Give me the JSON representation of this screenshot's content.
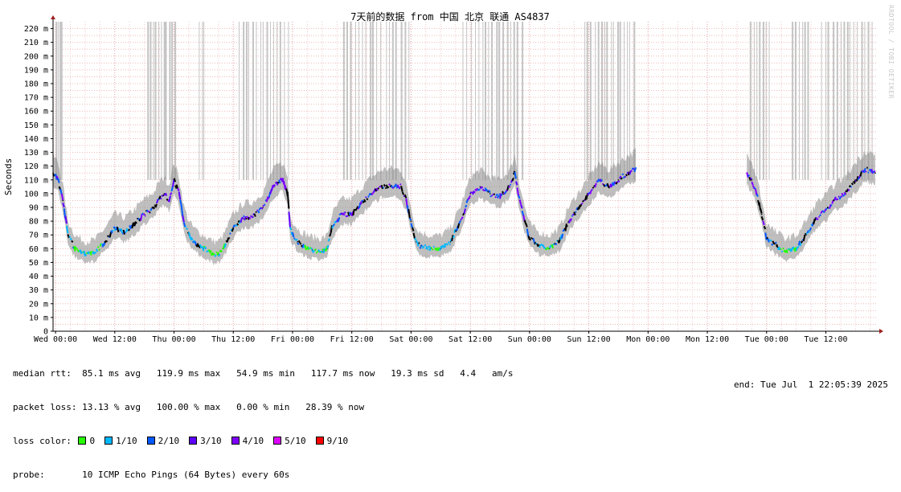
{
  "chart_data": {
    "type": "line",
    "title": "7天前的数据 from 中国 北京 联通 AS4837",
    "ylabel": "Seconds",
    "ylim": [
      0,
      225
    ],
    "yticks": [
      0,
      10,
      20,
      30,
      40,
      50,
      60,
      70,
      80,
      90,
      100,
      110,
      120,
      130,
      140,
      150,
      160,
      170,
      180,
      190,
      200,
      210,
      220
    ],
    "ytick_labels": [
      "0",
      "10 m",
      "20 m",
      "30 m",
      "40 m",
      "50 m",
      "60 m",
      "70 m",
      "80 m",
      "90 m",
      "100 m",
      "110 m",
      "120 m",
      "130 m",
      "140 m",
      "150 m",
      "160 m",
      "170 m",
      "180 m",
      "190 m",
      "200 m",
      "210 m",
      "220 m"
    ],
    "x_unit": "hours since Wed 00:00",
    "xlim": [
      -0.5,
      166.5
    ],
    "xticks": [
      0,
      12,
      24,
      36,
      48,
      60,
      72,
      84,
      96,
      108,
      120,
      132,
      144,
      156
    ],
    "xtick_labels": [
      "Wed 00:00",
      "Wed 12:00",
      "Thu 00:00",
      "Thu 12:00",
      "Fri 00:00",
      "Fri 12:00",
      "Sat 00:00",
      "Sat 12:00",
      "Sun 00:00",
      "Sun 12:00",
      "Mon 00:00",
      "Mon 12:00",
      "Tue 00:00",
      "Tue 12:00"
    ],
    "grid": true,
    "series": [
      {
        "name": "median rtt",
        "x": [
          -0.5,
          0.5,
          1.5,
          2.5,
          4,
          6,
          8,
          10,
          11,
          12,
          14,
          16,
          18,
          20,
          21,
          22,
          23,
          24,
          25,
          26,
          27,
          28,
          30,
          32,
          33,
          34,
          36,
          38,
          40,
          42,
          44,
          45,
          46,
          47,
          47.5,
          48,
          49,
          50,
          52,
          54,
          55,
          56,
          58,
          60,
          62,
          64,
          66,
          68,
          70,
          71,
          72,
          73,
          74,
          76,
          78,
          80,
          82,
          84,
          86,
          88,
          90,
          92,
          93,
          94,
          95,
          96,
          98,
          100,
          102,
          104,
          106,
          108,
          110,
          112,
          114,
          116,
          117.5,
          140,
          141,
          142,
          143,
          144,
          146,
          148,
          150,
          152,
          154,
          156,
          158,
          160,
          162,
          164,
          166
        ],
        "values": [
          115,
          110,
          95,
          70,
          60,
          56,
          57,
          65,
          70,
          75,
          72,
          78,
          85,
          90,
          97,
          100,
          95,
          110,
          100,
          80,
          70,
          65,
          60,
          56,
          56,
          60,
          75,
          82,
          83,
          90,
          105,
          108,
          110,
          100,
          75,
          70,
          65,
          62,
          59,
          58,
          60,
          75,
          85,
          85,
          93,
          100,
          105,
          106,
          105,
          95,
          80,
          65,
          62,
          60,
          60,
          65,
          80,
          100,
          105,
          100,
          98,
          105,
          115,
          95,
          80,
          68,
          62,
          60,
          65,
          80,
          90,
          100,
          110,
          105,
          110,
          115,
          118,
          115,
          110,
          100,
          85,
          68,
          62,
          58,
          60,
          70,
          82,
          88,
          96,
          100,
          110,
          118,
          115
        ]
      }
    ],
    "loss_spikes": [
      {
        "from": 0.2,
        "to": 1.5,
        "count": 4
      },
      {
        "from": 18.5,
        "to": 24.5,
        "count": 11
      },
      {
        "from": 29,
        "to": 30.5,
        "count": 3
      },
      {
        "from": 37,
        "to": 47.5,
        "count": 15
      },
      {
        "from": 58,
        "to": 72,
        "count": 18
      },
      {
        "from": 82.5,
        "to": 95,
        "count": 17
      },
      {
        "from": 107,
        "to": 117.5,
        "count": 16
      },
      {
        "from": 140.5,
        "to": 145,
        "count": 7
      },
      {
        "from": 149,
        "to": 153,
        "count": 6
      },
      {
        "from": 155,
        "to": 166,
        "count": 15
      }
    ]
  },
  "legend": {
    "median_rtt_label": "median rtt:",
    "median_rtt_values": "85.1 ms avg   119.9 ms max   54.9 ms min   117.7 ms now   19.3 ms sd   4.4   am/s",
    "packet_loss_label": "packet loss:",
    "packet_loss_values": "13.13 % avg   100.00 % max   0.00 % min   28.39 % now",
    "loss_color_label": "loss color:",
    "loss_colors": [
      {
        "label": "0",
        "color": "#26ff00"
      },
      {
        "label": "1/10",
        "color": "#00b8ff"
      },
      {
        "label": "2/10",
        "color": "#0059ff"
      },
      {
        "label": "3/10",
        "color": "#5e00ff"
      },
      {
        "label": "4/10",
        "color": "#7e00ff"
      },
      {
        "label": "5/10",
        "color": "#dd00ff"
      },
      {
        "label": "9/10",
        "color": "#ff0000"
      }
    ],
    "probe_label": "probe:",
    "probe_value": "10 ICMP Echo Pings (64 Bytes) every 60s",
    "end_value": "end: Tue Jul  1 22:05:39 2025"
  },
  "watermark": "RRDTOOL / TOBI OETIKER"
}
